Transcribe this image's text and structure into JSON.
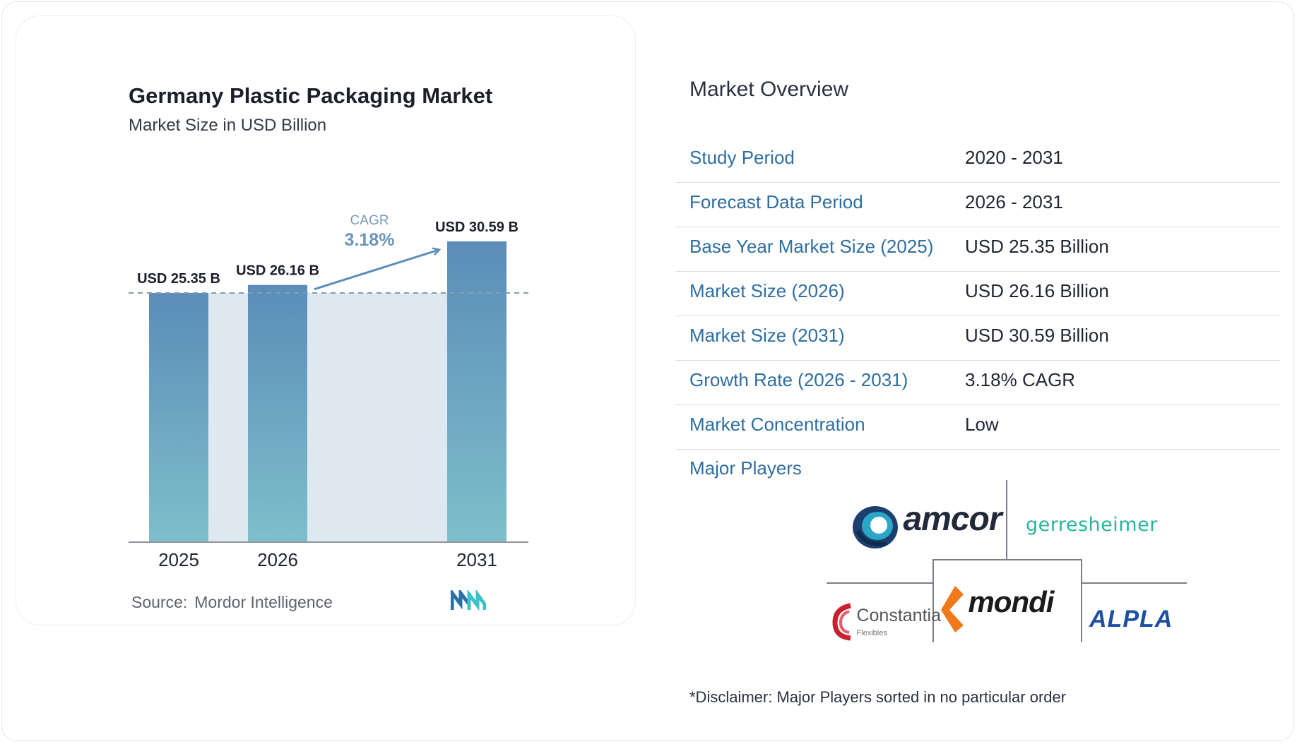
{
  "chart_data": {
    "type": "bar",
    "title": "Germany Plastic Packaging Market",
    "subtitle": "Market Size in USD Billion",
    "categories": [
      "2025",
      "2026",
      "2031"
    ],
    "values": [
      25.35,
      26.16,
      30.59
    ],
    "data_labels": [
      "USD 25.35 B",
      "USD 26.16 B",
      "USD 30.59 B"
    ],
    "cagr_label": "CAGR",
    "cagr_value": "3.18%",
    "colors": {
      "bar_top": "#5b8db8",
      "bar_bottom": "#7dbfca",
      "band": "#dde8f1",
      "arrow": "#5b8db8",
      "dashed": "#7f9fb8"
    }
  },
  "source": {
    "label": "Source:",
    "value": "Mordor Intelligence"
  },
  "overview": {
    "title": "Market Overview",
    "rows": [
      {
        "key": "Study Period",
        "value": "2020 - 2031"
      },
      {
        "key": "Forecast Data Period",
        "value": "2026 - 2031"
      },
      {
        "key": "Base Year Market Size (2025)",
        "value": "USD 25.35 Billion"
      },
      {
        "key": "Market Size (2026)",
        "value": "USD 26.16 Billion"
      },
      {
        "key": "Market Size (2031)",
        "value": "USD 30.59 Billion"
      },
      {
        "key": "Growth Rate (2026 - 2031)",
        "value": "3.18% CAGR"
      },
      {
        "key": "Market Concentration",
        "value": "Low"
      }
    ]
  },
  "players": {
    "title": "Major Players",
    "logos": [
      "amcor",
      "gerresheimer",
      "Constantia",
      "Flexibles",
      "mondi",
      "ALPLA"
    ]
  },
  "disclaimer": "*Disclaimer: Major Players sorted in no particular order"
}
